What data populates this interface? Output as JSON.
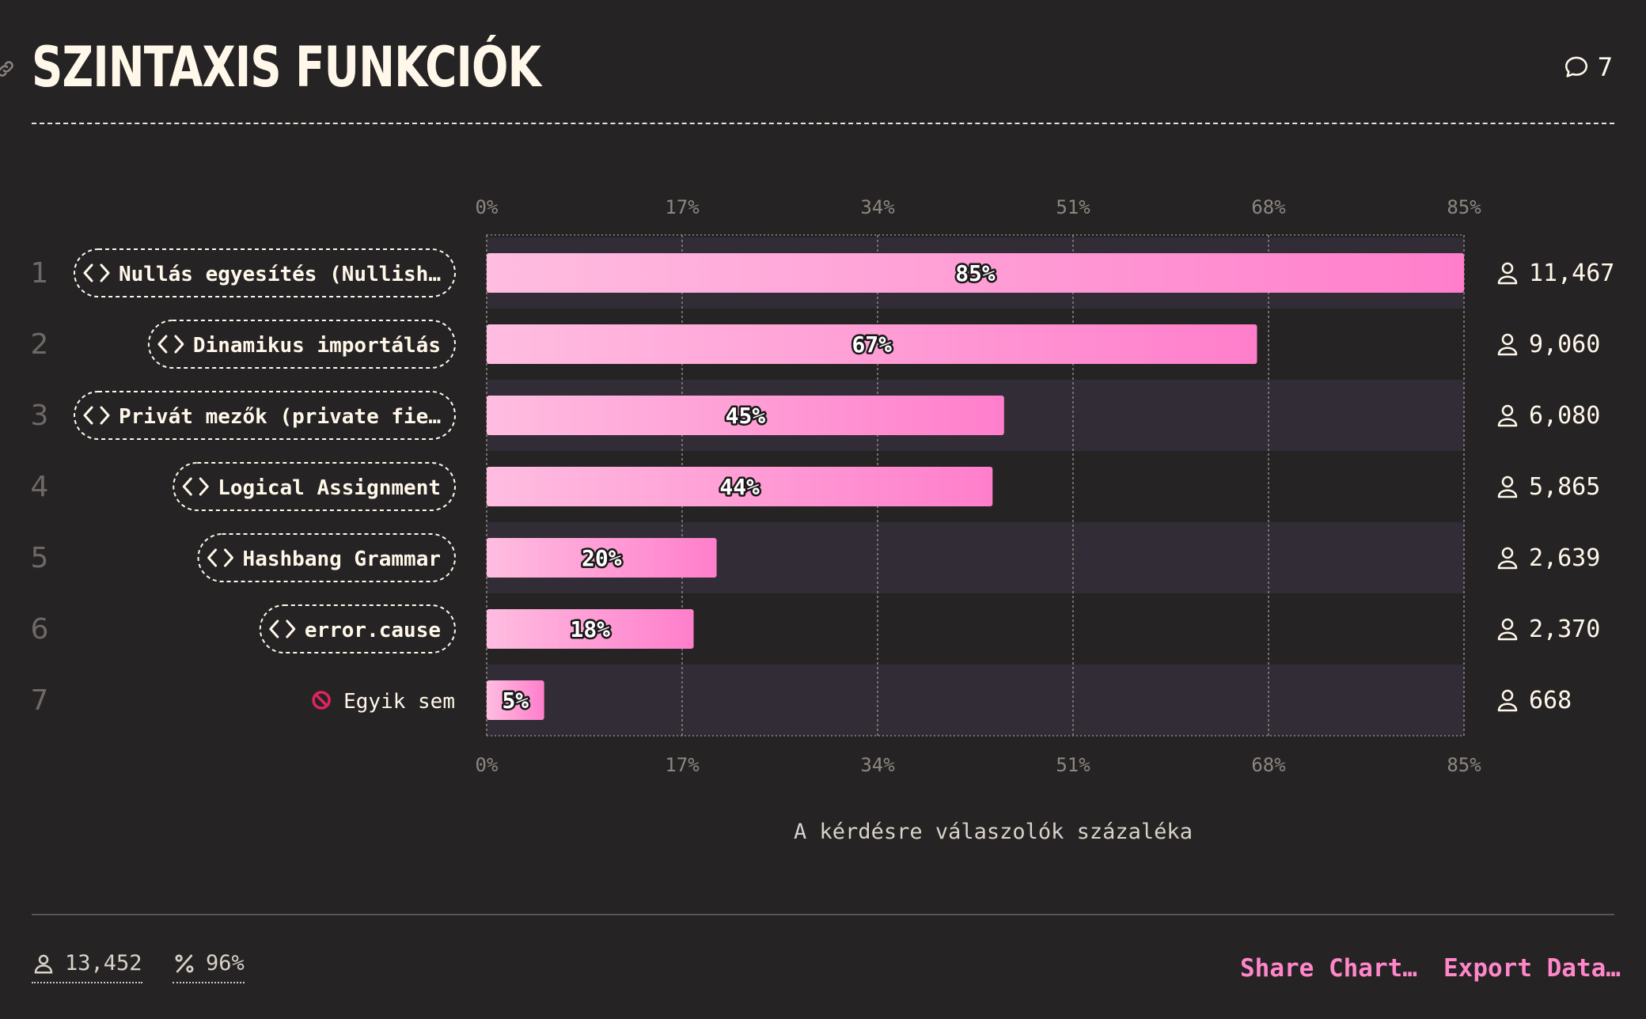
{
  "page": {
    "title": "SZINTAXIS FUNKCIÓK",
    "comment_count": "7",
    "footer": {
      "respondents": "13,452",
      "percent": "96%",
      "share_label": "Share Chart…",
      "export_label": "Export Data…"
    }
  },
  "colors": {
    "background": "#262324",
    "bar_light": "#ffbde0",
    "bar_dark": "#ff7ecb",
    "row_band": "#312c35",
    "accent": "#ff86c8"
  },
  "chart_data": {
    "type": "bar",
    "orientation": "horizontal",
    "categories": [
      "Nullás egyesítés (Nullish…",
      "Dinamikus importálás",
      "Privát mezők (private fie…",
      "Logical Assignment",
      "Hashbang Grammar",
      "error.cause",
      "Egyik sem"
    ],
    "category_icons": [
      "code-icon",
      "code-icon",
      "code-icon",
      "code-icon",
      "code-icon",
      "code-icon",
      "no-entry-icon"
    ],
    "ranks": [
      "1",
      "2",
      "3",
      "4",
      "5",
      "6",
      "7"
    ],
    "values": [
      85,
      67,
      45,
      44,
      20,
      18,
      5
    ],
    "value_labels": [
      "85%",
      "67%",
      "45%",
      "44%",
      "20%",
      "18%",
      "5%"
    ],
    "counts": [
      "11,467",
      "9,060",
      "6,080",
      "5,865",
      "2,639",
      "2,370",
      "668"
    ],
    "xlabel": "A kérdésre válaszolók százaléka",
    "ylabel": "",
    "xlim": [
      0,
      85
    ],
    "xticks": [
      0,
      17,
      34,
      51,
      68,
      85
    ],
    "xtick_labels": [
      "0%",
      "17%",
      "34%",
      "51%",
      "68%",
      "85%"
    ],
    "grid": true
  }
}
